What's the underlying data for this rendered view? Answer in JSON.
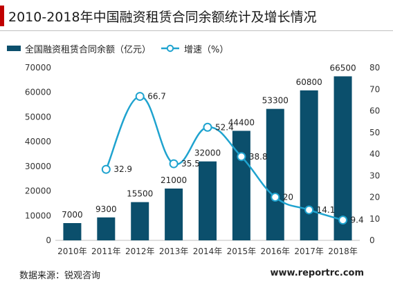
{
  "title": "2010-2018年中国融资租赁合同余额统计及增长情况",
  "legend": {
    "bar_label": "全国融资租赁合同余额（亿元）",
    "line_label": "增速（%）"
  },
  "source": "数据来源：锐观咨询",
  "site": "www.reportrc.com",
  "colors": {
    "bar": "#0b4f6c",
    "line": "#1fa3cf",
    "accent": "#c00000"
  },
  "chart_data": {
    "type": "bar",
    "title": "2010-2018年中国融资租赁合同余额统计及增长情况",
    "categories": [
      "2010年",
      "2011年",
      "2012年",
      "2013年",
      "2014年",
      "2015年",
      "2016年",
      "2017年",
      "2018年"
    ],
    "series": [
      {
        "name": "全国融资租赁合同余额（亿元）",
        "type": "bar",
        "axis": "left",
        "values": [
          7000,
          9300,
          15500,
          21000,
          32000,
          44400,
          53300,
          60800,
          66500
        ]
      },
      {
        "name": "增速（%）",
        "type": "line",
        "axis": "right",
        "values": [
          null,
          32.9,
          66.7,
          35.5,
          52.4,
          38.8,
          20,
          14.1,
          9.4
        ],
        "labels": [
          "",
          "32.9",
          "66.7",
          "35.5",
          "52.4",
          "38.8",
          "20",
          "14.1",
          "9.4"
        ]
      }
    ],
    "ylim": [
      0,
      70000
    ],
    "yticks": [
      "0",
      "10000",
      "20000",
      "30000",
      "40000",
      "50000",
      "60000",
      "70000"
    ],
    "y2lim": [
      0,
      80
    ],
    "y2ticks": [
      "0",
      "10",
      "20",
      "30",
      "40",
      "50",
      "60",
      "70",
      "80"
    ],
    "legend_position": "top-left",
    "grid": false
  }
}
